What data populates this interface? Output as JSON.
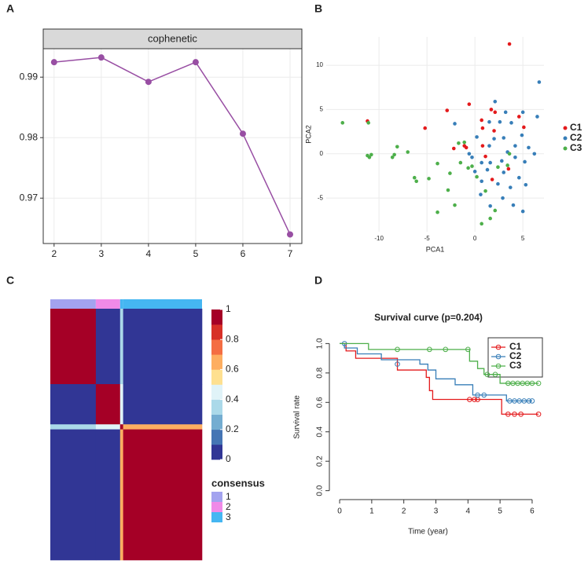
{
  "chart_data": [
    {
      "type": "line",
      "panel_label": "A",
      "strip": "cophenetic",
      "x": [
        2,
        3,
        4,
        5,
        6,
        7
      ],
      "values": [
        0.99247,
        0.99325,
        0.98922,
        0.99247,
        0.98065,
        0.964
      ],
      "color": "#984ea3",
      "xlim": [
        1.77,
        7.25
      ],
      "ylim": [
        0.9625,
        0.9947
      ],
      "xticks": [
        2,
        3,
        4,
        5,
        6,
        7
      ],
      "yticks": [
        0.97,
        0.98,
        0.99
      ],
      "grid": true
    },
    {
      "type": "scatter",
      "panel_label": "B",
      "xlabel": "PCA1",
      "ylabel": "PCA2",
      "xlim": [
        -15.5,
        7.2
      ],
      "ylim": [
        -8.8,
        13.2
      ],
      "xticks": [
        -10,
        -5,
        0,
        5
      ],
      "yticks": [
        -5,
        0,
        5,
        10
      ],
      "grid": true,
      "series": [
        {
          "name": "C1",
          "color": "#e41a1c",
          "x": [
            3.6,
            -0.6,
            -2.9,
            -5.2,
            1.7,
            0.7,
            0.8,
            2.1,
            2.0,
            0.8,
            -1.1,
            -2.2,
            -0.9,
            1.1,
            1.8,
            4.6,
            5.1,
            3.5,
            -11.2
          ],
          "values": [
            12.4,
            5.6,
            4.9,
            2.9,
            5.0,
            3.8,
            2.9,
            4.7,
            2.6,
            0.9,
            0.9,
            0.6,
            0.7,
            -0.3,
            -2.9,
            4.2,
            3.0,
            -1.7,
            3.7
          ]
        },
        {
          "name": "C2",
          "color": "#377eb8",
          "x": [
            6.7,
            2.1,
            3.2,
            5.0,
            -2.1,
            1.5,
            2.6,
            3.8,
            6.5,
            0.2,
            2.0,
            3.0,
            4.9,
            1.5,
            4.2,
            -0.3,
            0.7,
            1.6,
            2.8,
            4.2,
            5.2,
            0.0,
            1.3,
            3.0,
            4.6,
            0.7,
            2.4,
            3.7,
            5.3,
            0.6,
            2.9,
            4.0,
            5.0,
            1.6,
            -0.6,
            6.2,
            5.6,
            3.4
          ],
          "values": [
            8.1,
            5.9,
            4.7,
            4.7,
            3.4,
            3.6,
            3.6,
            3.5,
            4.2,
            1.9,
            1.7,
            1.8,
            2.1,
            0.9,
            0.9,
            -0.4,
            -1.0,
            -1.0,
            -0.8,
            -0.4,
            -0.9,
            -2.0,
            -1.8,
            -2.1,
            -2.7,
            -3.1,
            -3.4,
            -3.8,
            -3.5,
            -4.6,
            -5.0,
            -5.8,
            -6.5,
            -5.9,
            0.0,
            0.0,
            0.7,
            0.2
          ]
        },
        {
          "name": "C3",
          "color": "#4daf4a",
          "x": [
            -13.8,
            -11.1,
            -11.2,
            -11.0,
            -10.8,
            -8.6,
            -8.4,
            -8.1,
            -7.0,
            -6.3,
            -6.1,
            -4.8,
            -3.9,
            -2.6,
            -2.8,
            -3.9,
            -2.1,
            -1.7,
            -1.1,
            -1.5,
            -0.3,
            0.2,
            0.7,
            1.1,
            1.6,
            2.1,
            3.4,
            2.4,
            3.6,
            -0.7
          ],
          "values": [
            3.5,
            3.5,
            -0.2,
            -0.4,
            -0.1,
            -0.4,
            -0.1,
            0.8,
            0.2,
            -2.7,
            -3.1,
            -2.8,
            -1.1,
            -2.2,
            -4.1,
            -6.6,
            -5.8,
            1.2,
            1.3,
            -1.0,
            -1.4,
            -2.6,
            -7.9,
            -4.2,
            -7.3,
            -6.4,
            -1.3,
            -1.5,
            0.0,
            -1.6
          ]
        }
      ]
    },
    {
      "type": "heatmap",
      "panel_label": "C",
      "segment_sizes": [
        30,
        16,
        2,
        52
      ],
      "segment_clusters": [
        "1",
        "2",
        "3",
        "3"
      ],
      "matrix": [
        [
          0.95,
          0.05,
          0.3,
          0.08
        ],
        [
          0.05,
          0.95,
          0.4,
          0.05
        ],
        [
          0.3,
          0.4,
          1,
          0.6
        ],
        [
          0.08,
          0.05,
          0.6,
          0.95
        ]
      ],
      "colorbar_ticks": [
        0,
        0.2,
        0.4,
        0.6,
        0.8,
        1
      ],
      "colorbar_colors": [
        "#313695",
        "#4575b4",
        "#74add1",
        "#abd9e9",
        "#e0f3f8",
        "#fee090",
        "#fdae61",
        "#f46d43",
        "#d73027",
        "#a50026"
      ],
      "legend_title": "consensus",
      "cluster_names": [
        "1",
        "2",
        "3"
      ],
      "cluster_colors": [
        "#a3a3ef",
        "#f08ae8",
        "#45b6f2"
      ]
    },
    {
      "type": "survival",
      "panel_label": "D",
      "title": "Survival curve (p=0.204)",
      "xlabel": "Time (year)",
      "ylabel": "Survival rate",
      "xlim": [
        -0.32,
        6.32
      ],
      "ylim": [
        -0.05,
        1.05
      ],
      "xticks": [
        0,
        1,
        2,
        3,
        4,
        5,
        6
      ],
      "yticks": [
        {
          "value": 0,
          "label": "0.0"
        },
        0.2,
        0.4,
        0.6,
        0.8,
        {
          "value": 1,
          "label": "1.0"
        }
      ],
      "series": [
        {
          "name": "C1",
          "color": "#e41a1c",
          "x": [
            0,
            0.2,
            0.5,
            1.8,
            2.7,
            2.8,
            2.9,
            5.05,
            6.2
          ],
          "values": [
            1,
            0.95,
            0.9,
            0.82,
            0.77,
            0.68,
            0.62,
            0.52,
            0.52
          ],
          "censor_x": [
            4.05,
            4.2,
            4.3,
            5.25,
            5.45,
            5.65,
            6.2
          ],
          "censor_values": [
            0.62,
            0.62,
            0.62,
            0.52,
            0.52,
            0.52,
            0.52
          ]
        },
        {
          "name": "C2",
          "color": "#377eb8",
          "x": [
            0,
            0.15,
            0.55,
            1.3,
            2.5,
            2.75,
            3.0,
            3.6,
            4.15,
            5.2,
            6.0
          ],
          "values": [
            1,
            0.97,
            0.93,
            0.89,
            0.86,
            0.82,
            0.76,
            0.72,
            0.65,
            0.61,
            0.61
          ],
          "censor_x": [
            0.15,
            1.8,
            4.3,
            4.5,
            5.3,
            5.45,
            5.6,
            5.75,
            5.9,
            6.0
          ],
          "censor_values": [
            1,
            0.86,
            0.65,
            0.65,
            0.61,
            0.61,
            0.61,
            0.61,
            0.61,
            0.61
          ]
        },
        {
          "name": "C3",
          "color": "#4daf4a",
          "x": [
            0,
            0.9,
            4.05,
            4.3,
            4.5,
            5.0,
            6.2
          ],
          "values": [
            1,
            0.96,
            0.88,
            0.83,
            0.79,
            0.73,
            0.73
          ],
          "censor_x": [
            1.8,
            2.8,
            3.3,
            4.0,
            4.6,
            4.85,
            5.25,
            5.4,
            5.55,
            5.7,
            5.85,
            6.0,
            6.2
          ],
          "censor_values": [
            0.96,
            0.96,
            0.96,
            0.96,
            0.79,
            0.79,
            0.73,
            0.73,
            0.73,
            0.73,
            0.73,
            0.73,
            0.73
          ]
        }
      ]
    }
  ]
}
